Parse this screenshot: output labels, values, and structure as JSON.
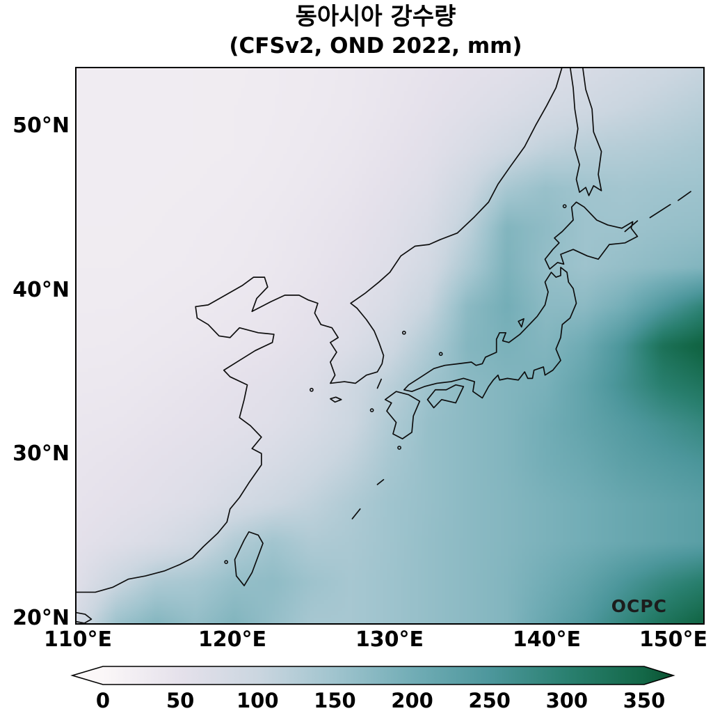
{
  "chart_data": {
    "type": "heatmap",
    "title": "동아시아 강수량",
    "subtitle": "(CFSv2, OND 2022, mm)",
    "model": "CFSv2",
    "period": "OND 2022",
    "units": "mm",
    "watermark": "OCPC",
    "lon_range": [
      110,
      150
    ],
    "lat_range": [
      19.7,
      53.7
    ],
    "x_tick_labels": [
      "110°E",
      "120°E",
      "130°E",
      "140°E",
      "150°E"
    ],
    "x_tick_lons": [
      110,
      120,
      130,
      140,
      150
    ],
    "y_tick_labels": [
      "50°N",
      "40°N",
      "30°N",
      "20°N"
    ],
    "y_tick_lats": [
      50,
      40,
      30,
      20
    ],
    "colorbar": {
      "orientation": "horizontal",
      "extend": "both",
      "ticks": [
        0,
        50,
        100,
        150,
        200,
        250,
        300,
        350
      ]
    },
    "colormap": {
      "values": [
        0,
        50,
        100,
        150,
        200,
        250,
        300,
        350
      ],
      "colors": [
        "#fbf7f8",
        "#e5e1eb",
        "#cbd6e0",
        "#a0c4ce",
        "#72adb6",
        "#4d979c",
        "#2a8070",
        "#136747"
      ],
      "under": "#fbf7f8",
      "over": "#0a5130"
    },
    "grid": {
      "note": "precipitation (mm) on uniform grid over map extent, row 0 = north edge, col 0 = west edge",
      "nx": 17,
      "ny": 15,
      "values": [
        [
          25,
          25,
          25,
          25,
          25,
          28,
          30,
          34,
          40,
          46,
          52,
          58,
          66,
          76,
          86,
          95,
          105
        ],
        [
          25,
          25,
          25,
          25,
          26,
          28,
          31,
          35,
          42,
          50,
          60,
          70,
          82,
          92,
          102,
          112,
          122
        ],
        [
          24,
          24,
          24,
          25,
          26,
          29,
          33,
          38,
          46,
          56,
          72,
          92,
          112,
          122,
          126,
          132,
          140
        ],
        [
          24,
          24,
          25,
          26,
          28,
          31,
          36,
          42,
          52,
          64,
          95,
          140,
          158,
          150,
          145,
          150,
          152
        ],
        [
          25,
          25,
          26,
          28,
          30,
          34,
          40,
          47,
          58,
          75,
          115,
          182,
          168,
          152,
          152,
          158,
          162
        ],
        [
          26,
          26,
          27,
          29,
          32,
          36,
          43,
          52,
          64,
          85,
          135,
          188,
          162,
          152,
          162,
          172,
          182
        ],
        [
          28,
          28,
          30,
          33,
          36,
          40,
          48,
          58,
          74,
          105,
          172,
          198,
          172,
          172,
          198,
          245,
          290
        ],
        [
          30,
          31,
          34,
          37,
          41,
          46,
          56,
          68,
          92,
          132,
          180,
          190,
          182,
          205,
          255,
          330,
          360
        ],
        [
          34,
          35,
          39,
          44,
          50,
          56,
          66,
          92,
          118,
          152,
          172,
          182,
          192,
          222,
          262,
          302,
          322
        ],
        [
          38,
          40,
          45,
          50,
          56,
          62,
          76,
          96,
          132,
          160,
          172,
          182,
          200,
          220,
          240,
          262,
          282
        ],
        [
          42,
          46,
          52,
          58,
          66,
          76,
          92,
          112,
          142,
          160,
          172,
          182,
          198,
          210,
          228,
          240,
          252
        ],
        [
          46,
          52,
          58,
          66,
          82,
          96,
          112,
          132,
          150,
          160,
          172,
          180,
          190,
          200,
          212,
          222,
          232
        ],
        [
          52,
          62,
          74,
          92,
          128,
          148,
          132,
          138,
          150,
          162,
          172,
          180,
          190,
          200,
          212,
          222,
          232
        ],
        [
          62,
          100,
          135,
          142,
          162,
          168,
          152,
          142,
          152,
          162,
          172,
          182,
          200,
          222,
          252,
          282,
          305
        ],
        [
          82,
          152,
          178,
          162,
          182,
          162,
          142,
          142,
          152,
          162,
          172,
          182,
          212,
          242,
          282,
          322,
          352
        ]
      ]
    }
  }
}
